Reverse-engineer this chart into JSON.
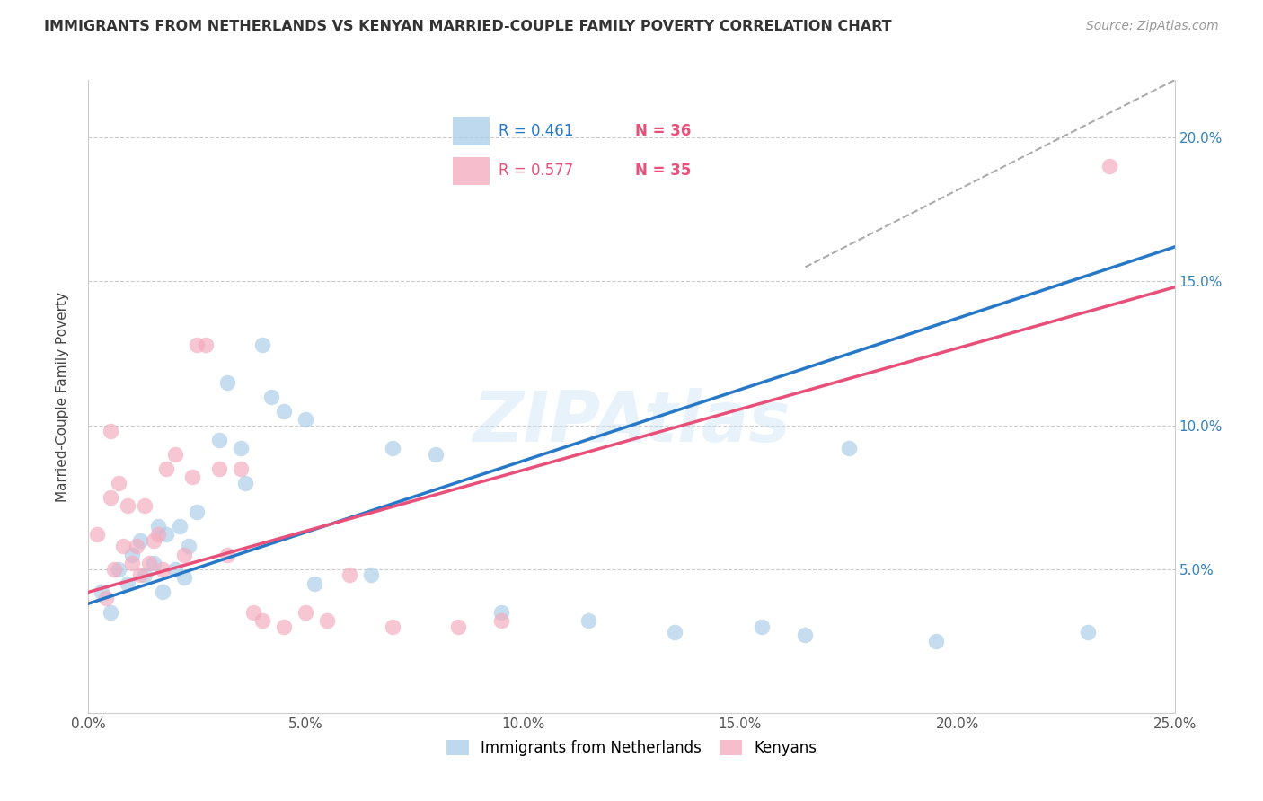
{
  "title": "IMMIGRANTS FROM NETHERLANDS VS KENYAN MARRIED-COUPLE FAMILY POVERTY CORRELATION CHART",
  "source": "Source: ZipAtlas.com",
  "ylabel": "Married-Couple Family Poverty",
  "watermark": "ZIPAtlas",
  "blue_color": "#a8cce8",
  "pink_color": "#f4a8bc",
  "blue_line_color": "#2878c8",
  "pink_line_color": "#e8507a",
  "blue_scatter": [
    [
      0.3,
      4.2
    ],
    [
      0.5,
      3.5
    ],
    [
      0.7,
      5.0
    ],
    [
      0.9,
      4.5
    ],
    [
      1.0,
      5.5
    ],
    [
      1.2,
      6.0
    ],
    [
      1.3,
      4.8
    ],
    [
      1.5,
      5.2
    ],
    [
      1.6,
      6.5
    ],
    [
      1.7,
      4.2
    ],
    [
      1.8,
      6.2
    ],
    [
      2.0,
      5.0
    ],
    [
      2.1,
      6.5
    ],
    [
      2.2,
      4.7
    ],
    [
      2.3,
      5.8
    ],
    [
      2.5,
      7.0
    ],
    [
      3.0,
      9.5
    ],
    [
      3.2,
      11.5
    ],
    [
      3.5,
      9.2
    ],
    [
      3.6,
      8.0
    ],
    [
      4.0,
      12.8
    ],
    [
      4.2,
      11.0
    ],
    [
      4.5,
      10.5
    ],
    [
      5.0,
      10.2
    ],
    [
      5.2,
      4.5
    ],
    [
      6.5,
      4.8
    ],
    [
      7.0,
      9.2
    ],
    [
      8.0,
      9.0
    ],
    [
      9.5,
      3.5
    ],
    [
      11.5,
      3.2
    ],
    [
      13.5,
      2.8
    ],
    [
      15.5,
      3.0
    ],
    [
      16.5,
      2.7
    ],
    [
      17.5,
      9.2
    ],
    [
      19.5,
      2.5
    ],
    [
      23.0,
      2.8
    ]
  ],
  "pink_scatter": [
    [
      0.2,
      6.2
    ],
    [
      0.4,
      4.0
    ],
    [
      0.5,
      7.5
    ],
    [
      0.6,
      5.0
    ],
    [
      0.7,
      8.0
    ],
    [
      0.8,
      5.8
    ],
    [
      0.9,
      7.2
    ],
    [
      1.0,
      5.2
    ],
    [
      1.1,
      5.8
    ],
    [
      1.2,
      4.8
    ],
    [
      1.3,
      7.2
    ],
    [
      1.4,
      5.2
    ],
    [
      1.5,
      6.0
    ],
    [
      1.6,
      6.2
    ],
    [
      1.7,
      5.0
    ],
    [
      1.8,
      8.5
    ],
    [
      2.0,
      9.0
    ],
    [
      2.2,
      5.5
    ],
    [
      2.4,
      8.2
    ],
    [
      2.5,
      12.8
    ],
    [
      2.7,
      12.8
    ],
    [
      3.0,
      8.5
    ],
    [
      3.2,
      5.5
    ],
    [
      3.5,
      8.5
    ],
    [
      3.8,
      3.5
    ],
    [
      4.0,
      3.2
    ],
    [
      4.5,
      3.0
    ],
    [
      5.0,
      3.5
    ],
    [
      5.5,
      3.2
    ],
    [
      6.0,
      4.8
    ],
    [
      7.0,
      3.0
    ],
    [
      8.5,
      3.0
    ],
    [
      9.5,
      3.2
    ],
    [
      23.5,
      19.0
    ],
    [
      0.5,
      9.8
    ]
  ],
  "blue_reg_x0": 0.0,
  "blue_reg_x1": 25.0,
  "blue_reg_y0": 3.8,
  "blue_reg_y1": 16.2,
  "pink_reg_x0": 0.0,
  "pink_reg_x1": 25.0,
  "pink_reg_y0": 4.2,
  "pink_reg_y1": 14.8,
  "dash_x0": 16.5,
  "dash_x1": 25.0,
  "dash_y0": 15.5,
  "dash_y1": 22.0,
  "xlim_min": 0,
  "xlim_max": 25,
  "ylim_min": 0,
  "ylim_max": 22,
  "xticks": [
    0,
    5,
    10,
    15,
    20,
    25
  ],
  "yticks": [
    5,
    10,
    15,
    20
  ],
  "legend_r_blue": "R = 0.461",
  "legend_n_blue": "N = 36",
  "legend_r_pink": "R = 0.577",
  "legend_n_pink": "N = 35",
  "legend_label_blue": "Immigrants from Netherlands",
  "legend_label_pink": "Kenyans",
  "r_blue_color": "#2878c8",
  "n_blue_color": "#e8507a",
  "r_pink_color": "#e8507a",
  "n_pink_color": "#e8507a"
}
